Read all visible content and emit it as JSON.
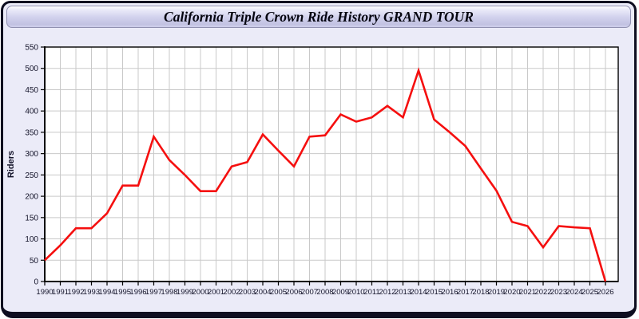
{
  "header": {
    "title": "California Triple Crown Ride History GRAND TOUR"
  },
  "chart_data": {
    "type": "line",
    "title": "California Triple Crown Ride History GRAND TOUR",
    "xlabel": "",
    "ylabel": "Riders",
    "ylim": [
      0,
      550
    ],
    "ytick_step": 50,
    "y_ticks": [
      0,
      50,
      100,
      150,
      200,
      250,
      300,
      350,
      400,
      450,
      500,
      550
    ],
    "grid": true,
    "legend_position": "none",
    "line_color": "#f50f0f",
    "x": [
      1990,
      1991,
      1992,
      1993,
      1994,
      1995,
      1996,
      1997,
      1998,
      1999,
      2000,
      2001,
      2002,
      2003,
      2004,
      2005,
      2006,
      2007,
      2008,
      2009,
      2010,
      2011,
      2012,
      2013,
      2014,
      2015,
      2016,
      2017,
      2018,
      2019,
      2020,
      2021,
      2022,
      2023,
      2024,
      2025,
      2026
    ],
    "series": [
      {
        "name": "Riders",
        "values": [
          50,
          85,
          125,
          125,
          160,
          225,
          225,
          340,
          285,
          250,
          212,
          212,
          270,
          280,
          345,
          307,
          270,
          340,
          343,
          392,
          375,
          385,
          412,
          385,
          495,
          380,
          350,
          318,
          265,
          213,
          140,
          130,
          80,
          130,
          127,
          125,
          0
        ]
      }
    ]
  },
  "colors": {
    "accent_line": "#f50f0f",
    "window_background": "#ebebf8",
    "window_border": "#0e0e20",
    "titlebar_top": "#ffffff",
    "titlebar_bottom": "#c2c2e2",
    "plot_background": "#ffffff",
    "gridline": "#c9c9c9",
    "axis": "#000000",
    "axis_label": "#14142a"
  }
}
